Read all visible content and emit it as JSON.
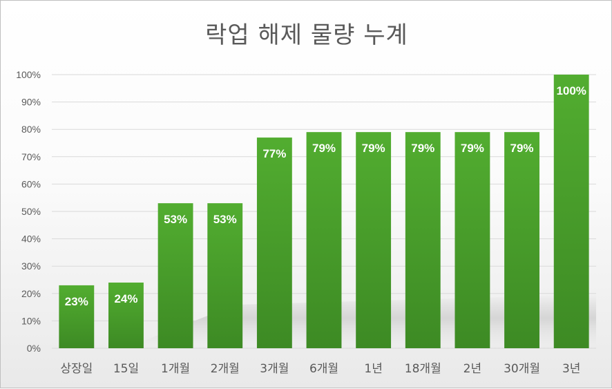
{
  "chart_data": {
    "type": "bar",
    "title": "락업 해제 물량 누계",
    "categories": [
      "상장일",
      "15일",
      "1개월",
      "2개월",
      "3개월",
      "6개월",
      "1년",
      "18개월",
      "2년",
      "30개월",
      "3년"
    ],
    "values": [
      23,
      24,
      53,
      53,
      77,
      79,
      79,
      79,
      79,
      79,
      100
    ],
    "data_labels": [
      "23%",
      "24%",
      "53%",
      "53%",
      "77%",
      "79%",
      "79%",
      "79%",
      "79%",
      "79%",
      "100%"
    ],
    "ylim": [
      0,
      100
    ],
    "y_ticks": [
      "0%",
      "10%",
      "20%",
      "30%",
      "40%",
      "50%",
      "60%",
      "70%",
      "80%",
      "90%",
      "100%"
    ],
    "xlabel": "",
    "ylabel": "",
    "grid": true,
    "legend": "none",
    "bar_color": "#4ea72e",
    "label_color": "#ffffff"
  }
}
